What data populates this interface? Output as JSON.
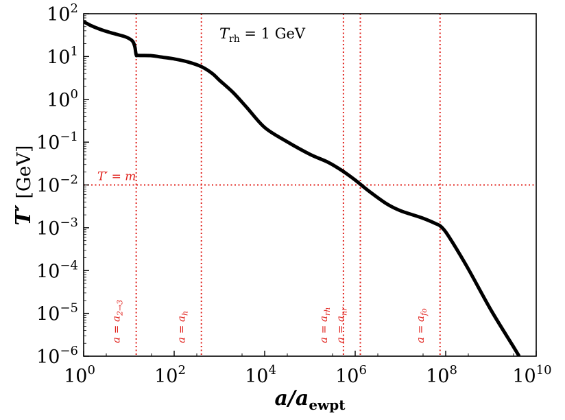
{
  "chart_data": {
    "type": "line",
    "title": "T_rh = 1 GeV",
    "title_parts": {
      "main": "T",
      "sub": "rh",
      "rest": " = 1 GeV"
    },
    "xlabel": {
      "main": "a/a",
      "sub": "ewpt"
    },
    "ylabel": {
      "main": "T′",
      "unit": " [GeV]"
    },
    "xscale": "log",
    "yscale": "log",
    "xlim": [
      1,
      10000000000
    ],
    "ylim": [
      1e-06,
      100
    ],
    "x_ticks": [
      {
        "value": 1,
        "base": "10",
        "exp": "0"
      },
      {
        "value": 100,
        "base": "10",
        "exp": "2"
      },
      {
        "value": 10000,
        "base": "10",
        "exp": "4"
      },
      {
        "value": 1000000,
        "base": "10",
        "exp": "6"
      },
      {
        "value": 100000000,
        "base": "10",
        "exp": "8"
      },
      {
        "value": 10000000000,
        "base": "10",
        "exp": "10"
      }
    ],
    "y_ticks": [
      {
        "value": 100,
        "base": "10",
        "exp": "2"
      },
      {
        "value": 10,
        "base": "10",
        "exp": "1"
      },
      {
        "value": 1,
        "base": "10",
        "exp": "0"
      },
      {
        "value": 0.1,
        "base": "10",
        "exp": "−1"
      },
      {
        "value": 0.01,
        "base": "10",
        "exp": "−2"
      },
      {
        "value": 0.001,
        "base": "10",
        "exp": "−3"
      },
      {
        "value": 0.0001,
        "base": "10",
        "exp": "−4"
      },
      {
        "value": 1e-05,
        "base": "10",
        "exp": "−5"
      },
      {
        "value": 1e-06,
        "base": "10",
        "exp": "−6"
      }
    ],
    "series": [
      {
        "name": "T'",
        "color": "#000000",
        "points": [
          [
            1,
            65
          ],
          [
            1.5,
            52
          ],
          [
            2.5,
            42
          ],
          [
            4,
            36
          ],
          [
            6,
            32
          ],
          [
            9,
            28
          ],
          [
            12,
            23
          ],
          [
            13.5,
            17
          ],
          [
            14.5,
            11
          ],
          [
            16,
            10.6
          ],
          [
            30,
            10.5
          ],
          [
            60,
            9.5
          ],
          [
            100,
            8.8
          ],
          [
            200,
            7.5
          ],
          [
            400,
            5.8
          ],
          [
            700,
            4.0
          ],
          [
            1000,
            2.8
          ],
          [
            2000,
            1.45
          ],
          [
            4000,
            0.65
          ],
          [
            10000,
            0.22
          ],
          [
            30000,
            0.105
          ],
          [
            100000,
            0.052
          ],
          [
            250000,
            0.034
          ],
          [
            500000,
            0.022
          ],
          [
            1000000,
            0.013
          ],
          [
            2000000,
            0.0072
          ],
          [
            5000000,
            0.0036
          ],
          [
            10000000,
            0.0025
          ],
          [
            30000000,
            0.0017
          ],
          [
            60000000,
            0.00125
          ],
          [
            80000000,
            0.00105
          ],
          [
            120000000,
            0.0006
          ],
          [
            300000000,
            0.00012
          ],
          [
            1000000000,
            1.2e-05
          ],
          [
            3000000000,
            1.8e-06
          ],
          [
            4200000000,
            1e-06
          ]
        ]
      }
    ],
    "hlines": [
      {
        "name": "T-equals-m",
        "y": 0.01,
        "label": "T′ = m",
        "color": "#e0201b"
      }
    ],
    "vlines": [
      {
        "name": "a-2to3",
        "x": 14.5,
        "label": "a = a",
        "sub": "2→3",
        "color": "#e0201b"
      },
      {
        "name": "a-h",
        "x": 400,
        "label": "a = a",
        "sub": "h",
        "color": "#e0201b"
      },
      {
        "name": "a-rh",
        "x": 550000,
        "label": "a = a",
        "sub": "rh",
        "color": "#e0201b"
      },
      {
        "name": "a-nr",
        "x": 1300000,
        "label": "a = a",
        "sub": "nr",
        "color": "#e0201b"
      },
      {
        "name": "a-fo",
        "x": 75000000,
        "label": "a = a",
        "sub": "fo",
        "color": "#e0201b"
      }
    ]
  }
}
